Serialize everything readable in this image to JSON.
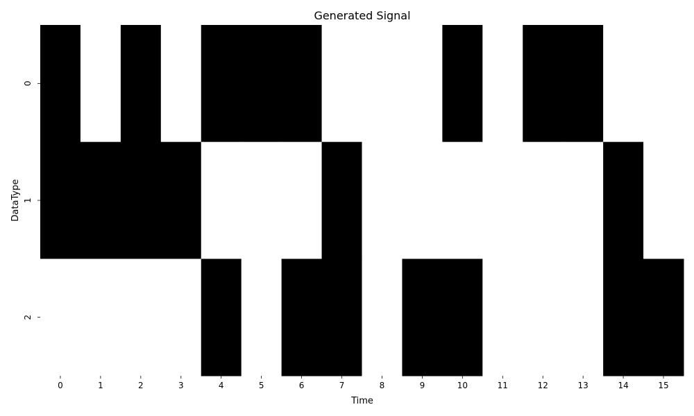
{
  "chart_data": {
    "type": "heatmap",
    "title": "Generated Signal",
    "xlabel": "Time",
    "ylabel": "DataType",
    "x_categories": [
      "0",
      "1",
      "2",
      "3",
      "4",
      "5",
      "6",
      "7",
      "8",
      "9",
      "10",
      "11",
      "12",
      "13",
      "14",
      "15"
    ],
    "y_categories": [
      "0",
      "1",
      "2"
    ],
    "values": [
      [
        1,
        0,
        1,
        0,
        1,
        1,
        1,
        0,
        0,
        0,
        1,
        0,
        1,
        1,
        0,
        0
      ],
      [
        1,
        1,
        1,
        1,
        0,
        0,
        0,
        1,
        0,
        0,
        0,
        0,
        0,
        0,
        1,
        0
      ],
      [
        0,
        0,
        0,
        0,
        1,
        0,
        1,
        1,
        0,
        1,
        1,
        0,
        0,
        0,
        1,
        1
      ]
    ],
    "colors": {
      "on": "#000000",
      "off": "#ffffff",
      "text": "#000000",
      "tick": "#000000"
    },
    "colorbar": false,
    "grid": false
  }
}
